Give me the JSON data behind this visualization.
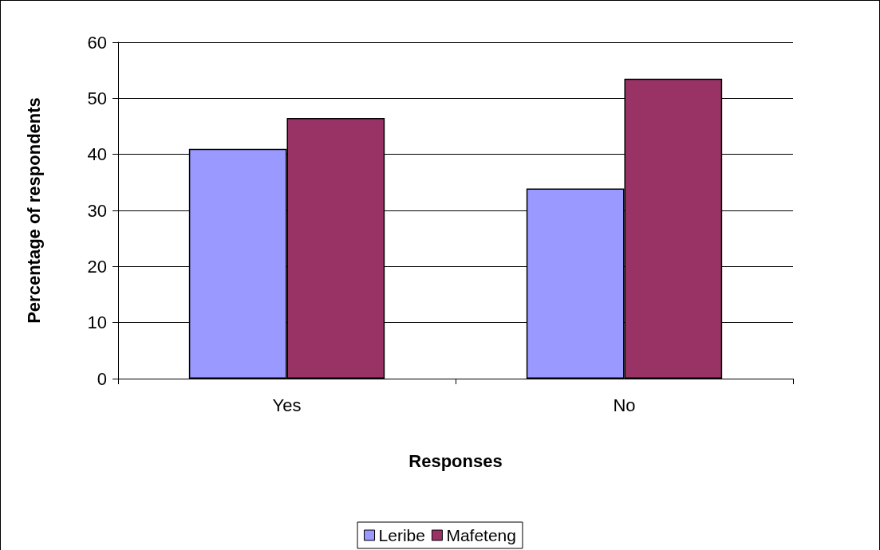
{
  "chart_data": {
    "type": "bar",
    "xlabel": "Responses",
    "ylabel": "Percentage of respondents",
    "categories": [
      "Yes",
      "No"
    ],
    "series": [
      {
        "name": "Leribe",
        "color": "#9999ff",
        "values": [
          41,
          33.9
        ]
      },
      {
        "name": "Mafeteng",
        "color": "#993366",
        "values": [
          46.5,
          53.5
        ]
      }
    ],
    "ylim": [
      0,
      60
    ],
    "yticks": [
      0,
      10,
      20,
      30,
      40,
      50,
      60
    ],
    "grid": "y",
    "legend": "bottom"
  }
}
